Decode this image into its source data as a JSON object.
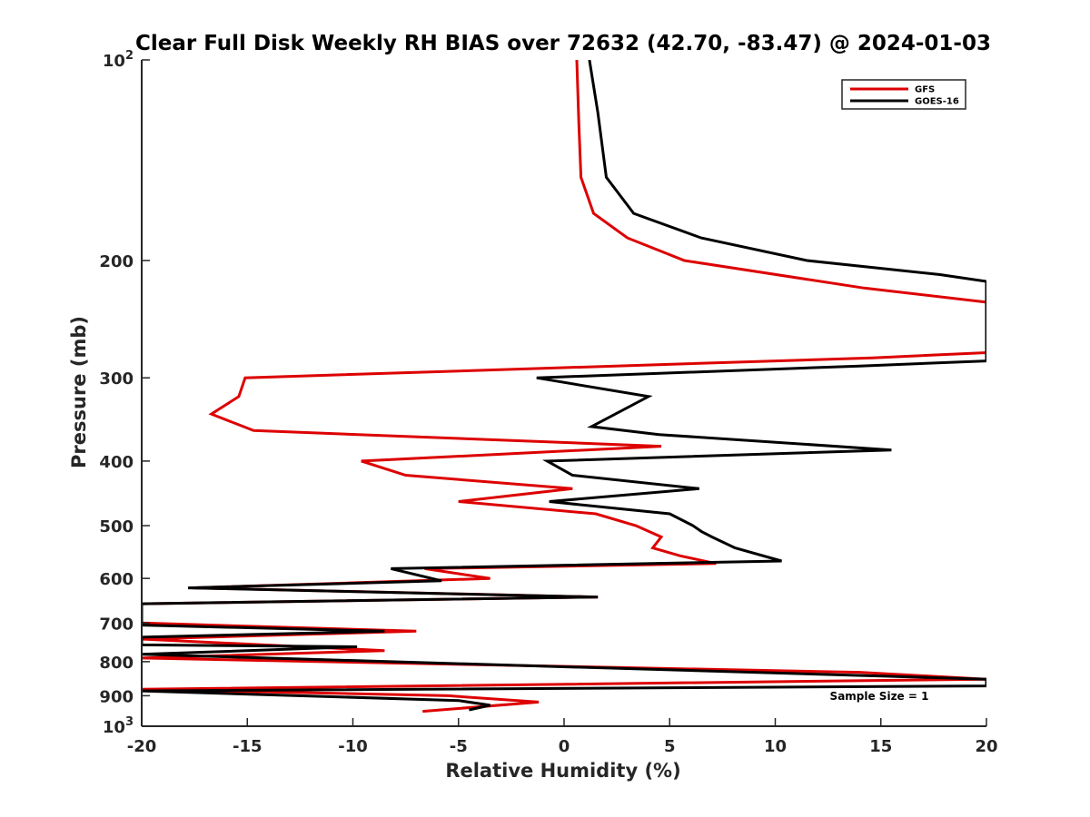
{
  "chart_data": {
    "type": "line",
    "title": "Clear Full Disk Weekly RH BIAS over 72632 (42.70, -83.47) @ 2024-01-03",
    "xlabel": "Relative Humidity (%)",
    "ylabel": "Pressure (mb)",
    "xlim": [
      -20,
      20
    ],
    "ylim": [
      100,
      1000
    ],
    "y_scale": "log",
    "y_reversed": true,
    "grid": false,
    "legend_position": "top-right",
    "x_ticks": [
      "-20",
      "-15",
      "-10",
      "-5",
      "0",
      "5",
      "10",
      "15",
      "20"
    ],
    "y_ticks": [
      {
        "value": 100,
        "base": "10",
        "exp": "2"
      },
      {
        "value": 200,
        "label": "200"
      },
      {
        "value": 300,
        "label": "300"
      },
      {
        "value": 400,
        "label": "400"
      },
      {
        "value": 500,
        "label": "500"
      },
      {
        "value": 600,
        "label": "600"
      },
      {
        "value": 700,
        "label": "700"
      },
      {
        "value": 800,
        "label": "800"
      },
      {
        "value": 900,
        "label": "900"
      },
      {
        "value": 1000,
        "base": "10",
        "exp": "3"
      }
    ],
    "series": [
      {
        "name": "GFS",
        "color": "#dd0000",
        "points": [
          [
            0.6,
            100
          ],
          [
            0.7,
            125
          ],
          [
            0.8,
            150
          ],
          [
            1.4,
            170
          ],
          [
            3.0,
            185
          ],
          [
            5.7,
            200
          ],
          [
            14.2,
            220
          ],
          [
            20.0,
            231
          ],
          [
            20.0,
            275
          ],
          [
            14.6,
            280
          ],
          [
            -15.1,
            300
          ],
          [
            -15.4,
            320
          ],
          [
            -16.7,
            340
          ],
          [
            -14.7,
            360
          ],
          [
            4.6,
            380
          ],
          [
            -9.6,
            400
          ],
          [
            -7.5,
            420
          ],
          [
            0.4,
            440
          ],
          [
            -5.0,
            460
          ],
          [
            1.5,
            480
          ],
          [
            3.4,
            500
          ],
          [
            4.6,
            520
          ],
          [
            4.2,
            540
          ],
          [
            5.5,
            555
          ],
          [
            7.2,
            570
          ],
          [
            -6.6,
            580
          ],
          [
            -3.5,
            600
          ],
          [
            -17.6,
            620
          ],
          [
            1.6,
            640
          ],
          [
            -20.0,
            655
          ],
          [
            -20.0,
            700
          ],
          [
            -7.0,
            720
          ],
          [
            -20.0,
            740
          ],
          [
            -8.5,
            770
          ],
          [
            -20.0,
            790
          ],
          [
            14.0,
            830
          ],
          [
            20.0,
            850
          ],
          [
            -20.0,
            880
          ],
          [
            -5.5,
            900
          ],
          [
            -1.2,
            920
          ],
          [
            -6.7,
            950
          ]
        ]
      },
      {
        "name": "GOES-16",
        "color": "#000000",
        "points": [
          [
            1.2,
            100
          ],
          [
            1.6,
            120
          ],
          [
            2.0,
            150
          ],
          [
            3.3,
            170
          ],
          [
            6.5,
            185
          ],
          [
            11.5,
            200
          ],
          [
            17.8,
            210
          ],
          [
            20.0,
            215
          ],
          [
            20.0,
            283
          ],
          [
            14.0,
            288
          ],
          [
            -1.3,
            300
          ],
          [
            4.0,
            320
          ],
          [
            1.3,
            355
          ],
          [
            4.5,
            365
          ],
          [
            15.5,
            385
          ],
          [
            -0.8,
            400
          ],
          [
            0.4,
            420
          ],
          [
            6.4,
            440
          ],
          [
            -0.7,
            460
          ],
          [
            5.0,
            480
          ],
          [
            6.1,
            500
          ],
          [
            6.5,
            510
          ],
          [
            7.0,
            520
          ],
          [
            8.1,
            540
          ],
          [
            10.3,
            565
          ],
          [
            -8.2,
            580
          ],
          [
            -5.8,
            605
          ],
          [
            -17.8,
            620
          ],
          [
            1.6,
            640
          ],
          [
            -20.0,
            655
          ],
          [
            -20.0,
            705
          ],
          [
            -8.5,
            720
          ],
          [
            -20.0,
            735
          ],
          [
            -20.0,
            755
          ],
          [
            -9.8,
            760
          ],
          [
            -20.0,
            780
          ],
          [
            20.0,
            850
          ],
          [
            20.0,
            870
          ],
          [
            -20.0,
            885
          ],
          [
            -5.0,
            915
          ],
          [
            -3.5,
            930
          ],
          [
            -4.5,
            945
          ]
        ]
      }
    ],
    "annotations": [
      "Sample Size = 1"
    ]
  }
}
